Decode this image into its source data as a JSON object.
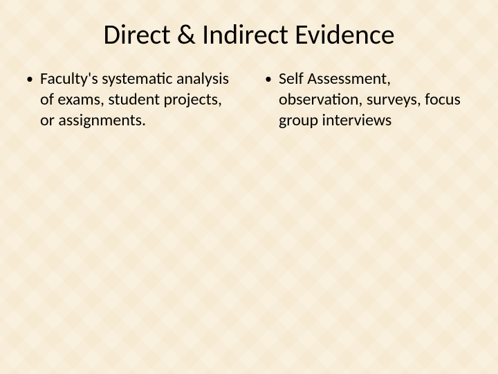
{
  "slide": {
    "title": "Direct & Indirect Evidence",
    "columns": {
      "left": {
        "bullet_marker": "•",
        "text": "Faculty's systematic analysis of exams, student projects, or assignments."
      },
      "right": {
        "bullet_marker": "•",
        "text": "Self Assessment, observation, surveys, focus group interviews"
      }
    }
  },
  "styling": {
    "background_color": "#f9f0de",
    "title_fontsize": 40,
    "title_color": "#000000",
    "body_fontsize": 24,
    "body_color": "#000000",
    "font_family": "Calibri"
  }
}
